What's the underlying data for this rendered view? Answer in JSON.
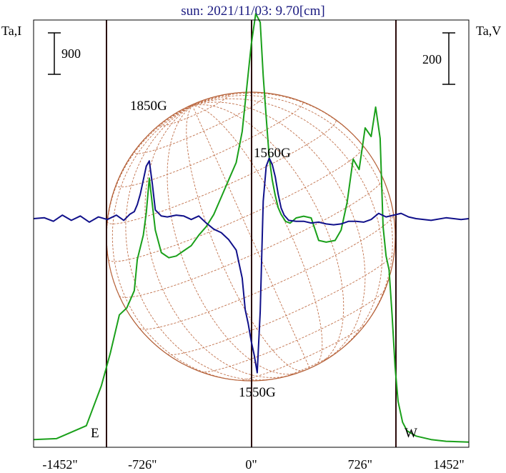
{
  "chart_data": {
    "type": "line",
    "title": "sun: 2021/11/03: 9.70[cm]",
    "left_axis_label": "Ta,I",
    "right_axis_label": "Ta,V",
    "left_scale_bar": "900",
    "right_scale_bar": "200",
    "x_ticks": [
      {
        "value": -1452,
        "label": "-1452\""
      },
      {
        "value": -726,
        "label": "-726\""
      },
      {
        "value": 0,
        "label": "0\""
      },
      {
        "value": 726,
        "label": "726\""
      },
      {
        "value": 1452,
        "label": "1452\""
      }
    ],
    "limb_markers": [
      {
        "x": -730,
        "label": "E"
      },
      {
        "x": 730,
        "label": "W"
      }
    ],
    "center_line_x": 0,
    "annotations": [
      {
        "text": "1850G",
        "x": -720
      },
      {
        "text": "1560G",
        "x": 110
      },
      {
        "text": "1550G",
        "x": 40
      }
    ],
    "xlim": [
      -1452,
      1452
    ],
    "series": [
      {
        "name": "Ta,I",
        "color": "#1aa01a",
        "x": [
          -1452,
          -1300,
          -1100,
          -1000,
          -940,
          -880,
          -830,
          -780,
          -760,
          -740,
          -720,
          -700,
          -680,
          -660,
          -640,
          -600,
          -550,
          -500,
          -450,
          -400,
          -350,
          -300,
          -250,
          -200,
          -150,
          -100,
          -60,
          -30,
          0,
          30,
          60,
          80,
          100,
          120,
          140,
          160,
          180,
          200,
          230,
          260,
          300,
          350,
          400,
          450,
          500,
          560,
          600,
          640,
          680,
          720,
          760,
          800,
          830,
          860,
          880,
          900,
          920,
          940,
          960,
          980,
          1010,
          1040,
          1100,
          1200,
          1300,
          1452
        ],
        "values": [
          20,
          25,
          100,
          330,
          520,
          740,
          780,
          880,
          1060,
          1130,
          1200,
          1330,
          1530,
          1380,
          1230,
          1100,
          1070,
          1080,
          1110,
          1140,
          1200,
          1250,
          1320,
          1420,
          1520,
          1620,
          1800,
          2050,
          2300,
          2480,
          2430,
          2120,
          1880,
          1650,
          1520,
          1430,
          1360,
          1320,
          1280,
          1270,
          1300,
          1310,
          1300,
          1170,
          1160,
          1170,
          1230,
          1390,
          1640,
          1580,
          1820,
          1770,
          1940,
          1760,
          1250,
          1080,
          1000,
          740,
          440,
          240,
          120,
          70,
          40,
          20,
          10,
          5
        ]
      },
      {
        "name": "Ta,V",
        "color": "#10108a",
        "x": [
          -1452,
          -1380,
          -1320,
          -1260,
          -1200,
          -1140,
          -1080,
          -1020,
          -960,
          -900,
          -850,
          -810,
          -780,
          -760,
          -740,
          -720,
          -700,
          -680,
          -660,
          -640,
          -600,
          -560,
          -500,
          -450,
          -400,
          -350,
          -300,
          -250,
          -200,
          -150,
          -100,
          -60,
          -40,
          -20,
          0,
          20,
          40,
          60,
          80,
          100,
          120,
          140,
          160,
          180,
          200,
          220,
          250,
          300,
          350,
          400,
          450,
          500,
          550,
          600,
          650,
          700,
          750,
          800,
          850,
          900,
          950,
          1000,
          1050,
          1100,
          1200,
          1300,
          1400,
          1452
        ],
        "values": [
          0,
          5,
          -15,
          20,
          -10,
          15,
          -20,
          10,
          -5,
          20,
          -10,
          25,
          40,
          80,
          140,
          220,
          300,
          330,
          200,
          50,
          15,
          10,
          20,
          15,
          -5,
          15,
          -25,
          -60,
          -80,
          -120,
          -180,
          -340,
          -520,
          -600,
          -700,
          -780,
          -880,
          -530,
          100,
          300,
          345,
          310,
          240,
          140,
          60,
          20,
          -10,
          -15,
          -15,
          -25,
          -20,
          -30,
          -35,
          -30,
          -15,
          -15,
          -20,
          -5,
          30,
          10,
          20,
          30,
          10,
          0,
          -10,
          5,
          -5,
          0
        ]
      }
    ]
  }
}
